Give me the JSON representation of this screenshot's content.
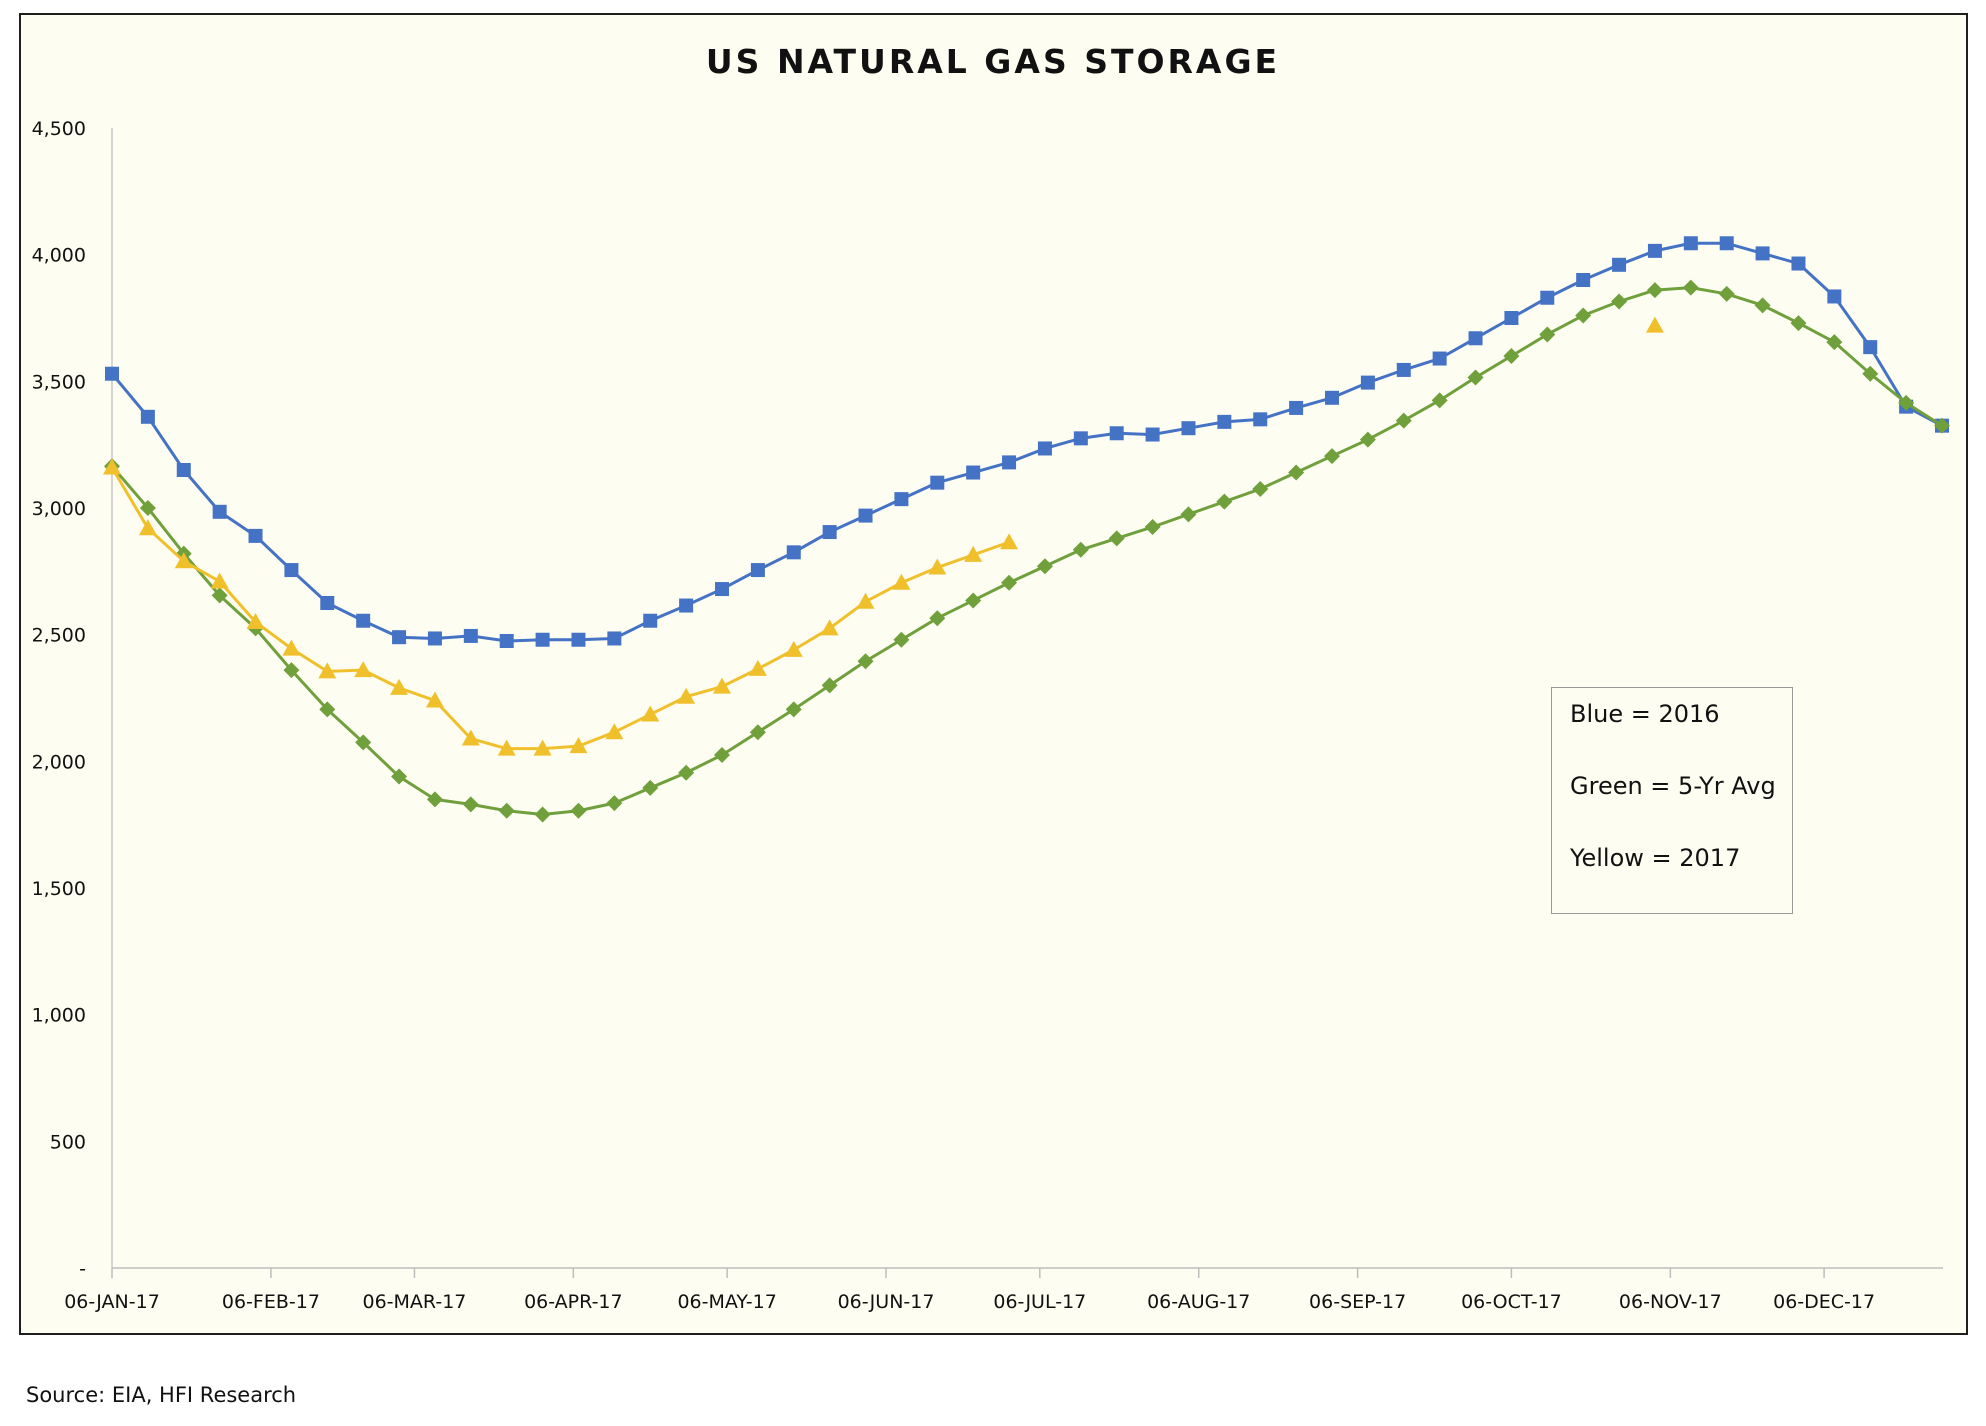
{
  "chart_data": {
    "type": "line",
    "title": "US NATURAL GAS STORAGE",
    "xlabel": "",
    "ylabel": "",
    "ylim": [
      0,
      4500
    ],
    "y_ticks": [
      "-",
      "500",
      "1,000",
      "1,500",
      "2,000",
      "2,500",
      "3,000",
      "3,500",
      "4,000",
      "4,500"
    ],
    "x_ticks": [
      "06-JAN-17",
      "06-FEB-17",
      "06-MAR-17",
      "06-APR-17",
      "06-MAY-17",
      "06-JUN-17",
      "06-JUL-17",
      "06-AUG-17",
      "06-SEP-17",
      "06-OCT-17",
      "06-NOV-17",
      "06-DEC-17"
    ],
    "x_start": "2017-01-06",
    "x_end": "2017-12-29",
    "x_step_days": 7,
    "grid": false,
    "series": [
      {
        "color": "#4472c4",
        "marker": "square",
        "values": [
          3530,
          3360,
          3150,
          2985,
          2890,
          2755,
          2625,
          2555,
          2490,
          2485,
          2495,
          2475,
          2480,
          2480,
          2485,
          2555,
          2615,
          2680,
          2755,
          2825,
          2905,
          2970,
          3035,
          3100,
          3140,
          3180,
          3235,
          3275,
          3295,
          3290,
          3315,
          3340,
          3350,
          3395,
          3435,
          3495,
          3545,
          3590,
          3670,
          3750,
          3830,
          3900,
          3960,
          4015,
          4045,
          4045,
          4005,
          3965,
          3835,
          3635,
          3400,
          3325
        ]
      },
      {
        "color": "#70a03c",
        "marker": "diamond",
        "values": [
          3165,
          3000,
          2820,
          2655,
          2525,
          2360,
          2205,
          2075,
          1940,
          1850,
          1830,
          1805,
          1790,
          1805,
          1835,
          1895,
          1955,
          2025,
          2115,
          2205,
          2300,
          2395,
          2480,
          2565,
          2635,
          2705,
          2770,
          2835,
          2880,
          2925,
          2975,
          3025,
          3075,
          3140,
          3205,
          3270,
          3345,
          3425,
          3515,
          3600,
          3685,
          3760,
          3815,
          3860,
          3870,
          3845,
          3800,
          3730,
          3655,
          3530,
          3415,
          3325
        ]
      },
      {
        "color": "#f0c02c",
        "marker": "triangle",
        "values": [
          3160,
          2920,
          2790,
          2710,
          2550,
          2445,
          2355,
          2360,
          2290,
          2240,
          2090,
          2050,
          2050,
          2060,
          2115,
          2185,
          2255,
          2295,
          2365,
          2440,
          2525,
          2630,
          2705,
          2765,
          2815,
          2865,
          null,
          null,
          null,
          null,
          null,
          null,
          null,
          null,
          null,
          null,
          null,
          null,
          null,
          null,
          null,
          null,
          null,
          3720,
          null,
          null,
          null,
          null,
          null,
          null,
          null,
          null
        ]
      }
    ]
  },
  "legend": {
    "line1": "Blue = 2016",
    "line2": "Green = 5-Yr Avg",
    "line3": "Yellow = 2017"
  },
  "source": "Source: EIA, HFI Research"
}
